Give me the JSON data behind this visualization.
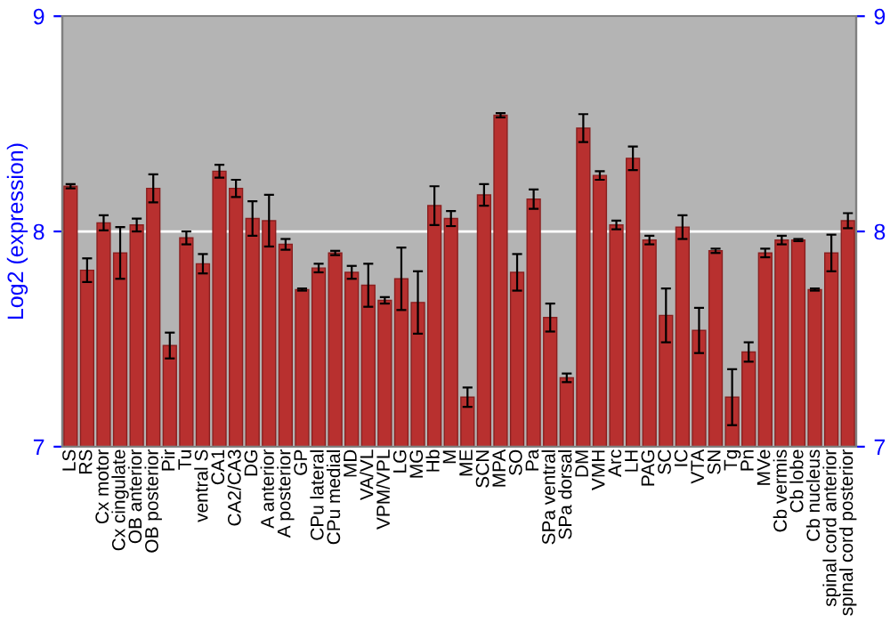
{
  "chart_data": {
    "type": "bar",
    "ylabel": "Log2 (expression)",
    "categories": [
      "LS",
      "RS",
      "Cx motor",
      "Cx cingulate",
      "OB anterior",
      "OB posterior",
      "Pir",
      "Tu",
      "ventral S",
      "CA1",
      "CA2/CA3",
      "DG",
      "A anterior",
      "A posterior",
      "GP",
      "CPu lateral",
      "CPu medial",
      "MD",
      "VA/VL",
      "VPM/VPL",
      "LG",
      "MG",
      "Hb",
      "M",
      "ME",
      "SCN",
      "MPA",
      "SO",
      "Pa",
      "SPa ventral",
      "SPa dorsal",
      "DM",
      "VMH",
      "Arc",
      "LH",
      "PAG",
      "SC",
      "IC",
      "VTA",
      "SN",
      "Tg",
      "Pn",
      "MVe",
      "Cb vermis",
      "Cb lobe",
      "Cb nucleus",
      "spinal cord anterior",
      "spinal cord posterior"
    ],
    "values": [
      8.21,
      7.82,
      8.04,
      7.9,
      8.03,
      8.2,
      7.47,
      7.97,
      7.85,
      8.28,
      8.2,
      8.06,
      8.05,
      7.94,
      7.73,
      7.83,
      7.9,
      7.81,
      7.75,
      7.68,
      7.78,
      7.67,
      8.12,
      8.06,
      7.23,
      8.17,
      8.54,
      7.81,
      8.15,
      7.6,
      7.32,
      8.48,
      8.26,
      8.03,
      8.34,
      7.96,
      7.61,
      8.02,
      7.54,
      7.91,
      7.23,
      7.44,
      7.9,
      7.96,
      7.96,
      7.73,
      7.9,
      8.05
    ],
    "errors": [
      0.01,
      0.055,
      0.035,
      0.12,
      0.03,
      0.065,
      0.06,
      0.03,
      0.045,
      0.03,
      0.04,
      0.08,
      0.12,
      0.025,
      0.005,
      0.02,
      0.01,
      0.03,
      0.1,
      0.015,
      0.145,
      0.145,
      0.09,
      0.035,
      0.045,
      0.05,
      0.01,
      0.085,
      0.045,
      0.065,
      0.02,
      0.065,
      0.02,
      0.02,
      0.055,
      0.02,
      0.125,
      0.055,
      0.105,
      0.01,
      0.13,
      0.045,
      0.02,
      0.02,
      0.005,
      0.005,
      0.085,
      0.035
    ],
    "color": "#b8302f",
    "ylim": [
      7,
      9
    ],
    "yticks": [
      7,
      8,
      9
    ],
    "y2lim": [
      7,
      9
    ],
    "y2ticks": [
      7,
      8,
      9
    ],
    "grid": "y"
  }
}
